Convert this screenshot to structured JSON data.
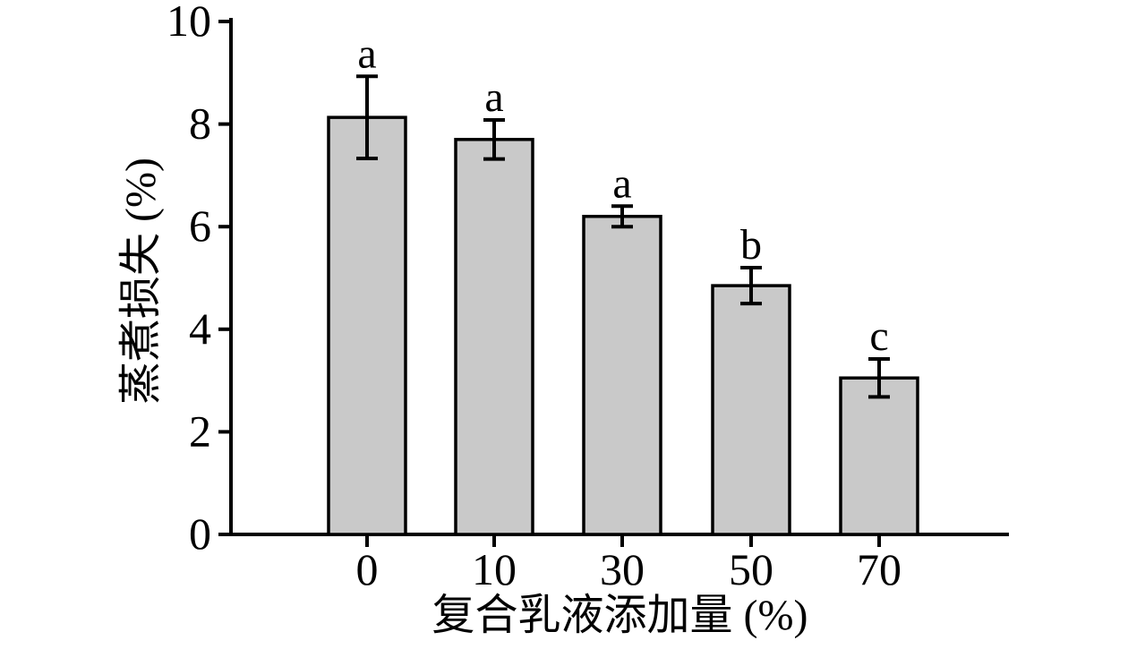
{
  "chart_data": {
    "type": "bar",
    "title": "",
    "categories": [
      "0",
      "10",
      "30",
      "50",
      "70"
    ],
    "values": [
      8.13,
      7.7,
      6.2,
      4.85,
      3.05
    ],
    "errors": [
      0.8,
      0.38,
      0.2,
      0.35,
      0.37
    ],
    "significance_letters": [
      "a",
      "a",
      "a",
      "b",
      "c"
    ],
    "xlabel": "复合乳液添加量 (%)",
    "ylabel": "蒸煮损失 (%)",
    "ylim": [
      0,
      10
    ],
    "yticks": [
      0,
      2,
      4,
      6,
      8,
      10
    ],
    "grid": false,
    "legend_position": "none",
    "bar_fill_color": "#c9c9c9",
    "bar_border_color": "#000000",
    "axis_color": "#000000",
    "background_color": "#ffffff"
  }
}
